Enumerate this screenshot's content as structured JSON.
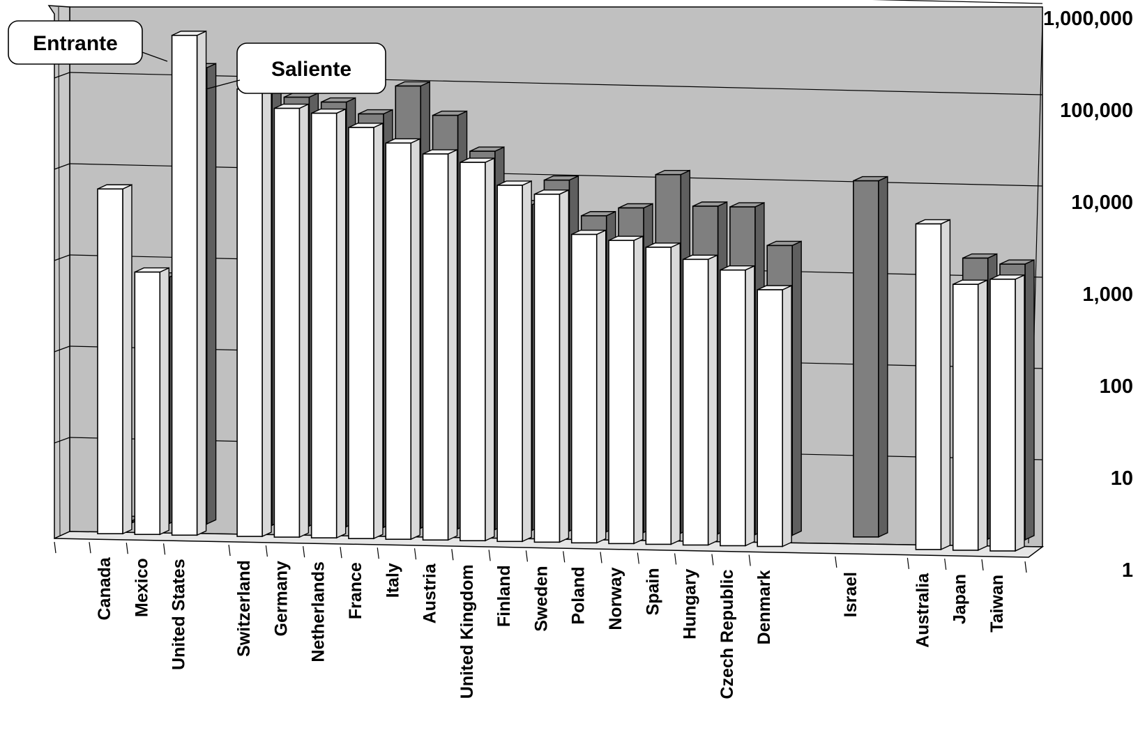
{
  "chart_data": {
    "type": "bar",
    "title": "",
    "xlabel": "",
    "ylabel": "",
    "yscale": "log",
    "ylim": [
      1,
      1000000
    ],
    "yticks": [
      "1",
      "10",
      "100",
      "1,000",
      "10,000",
      "100,000",
      "1,000,000"
    ],
    "grid": true,
    "categories": [
      "Canada",
      "Mexico",
      "United States",
      "Switzerland",
      "Germany",
      "Netherlands",
      "France",
      "Italy",
      "Austria",
      "United Kingdom",
      "Finland",
      "Sweden",
      "Poland",
      "Norway",
      "Spain",
      "Hungary",
      "Czech Republic",
      "Denmark",
      "Israel",
      "Australia",
      "Japan",
      "Taiwan"
    ],
    "series": [
      {
        "name": "Entrante",
        "color": "#ffffff",
        "values": [
          6000,
          750,
          300000,
          80000,
          50000,
          45000,
          32000,
          22000,
          17000,
          14000,
          8000,
          6500,
          2400,
          2100,
          1800,
          1350,
          1050,
          650,
          null,
          3700,
          820,
          950
        ]
      },
      {
        "name": "Saliente",
        "color": "#808080",
        "values": [
          1,
          500,
          100000,
          65000,
          50000,
          45000,
          34000,
          70000,
          34000,
          14000,
          3700,
          7000,
          2900,
          3600,
          8500,
          3900,
          3900,
          1500,
          8000,
          null,
          1200,
          1050
        ]
      }
    ],
    "annotations": [
      "Entrante",
      "Saliente"
    ]
  }
}
